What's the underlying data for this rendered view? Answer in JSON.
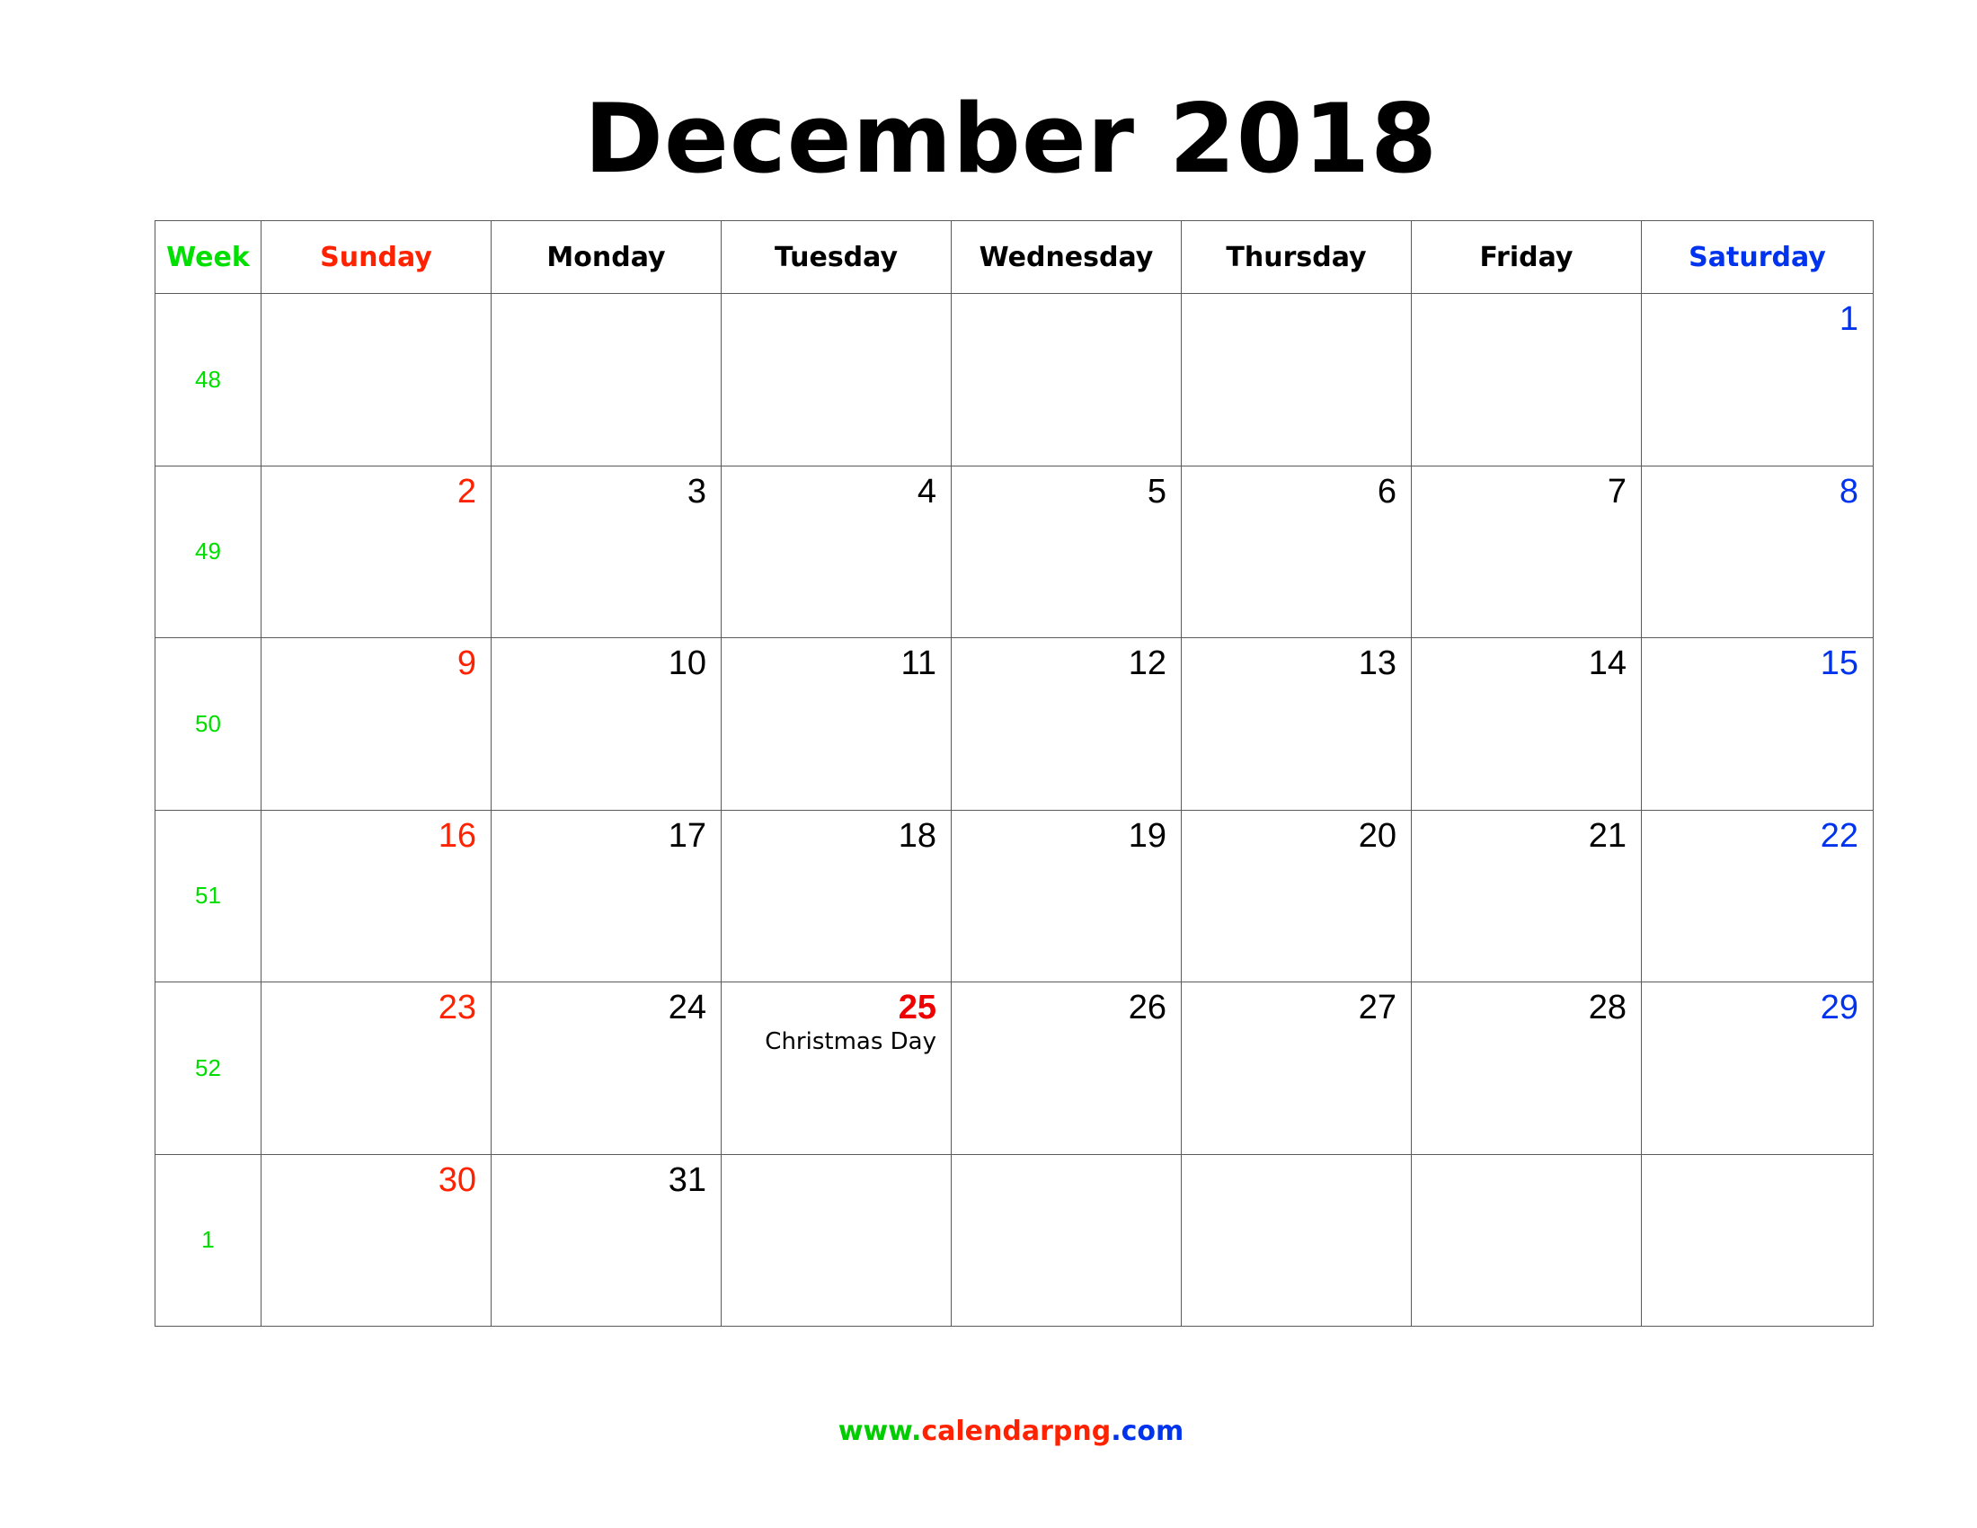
{
  "title": "December 2018",
  "header": {
    "week": "Week",
    "days": [
      "Sunday",
      "Monday",
      "Tuesday",
      "Wednesday",
      "Thursday",
      "Friday",
      "Saturday"
    ]
  },
  "colors": {
    "week": "#00dd00",
    "sunday": "#ff2200",
    "saturday": "#0033ee",
    "holiday": "#ee0000",
    "weekday": "#000000",
    "grid": "#5a5a5a"
  },
  "weeks": [
    {
      "week": "48",
      "days": [
        "",
        "",
        "",
        "",
        "",
        "",
        "1"
      ]
    },
    {
      "week": "49",
      "days": [
        "2",
        "3",
        "4",
        "5",
        "6",
        "7",
        "8"
      ]
    },
    {
      "week": "50",
      "days": [
        "9",
        "10",
        "11",
        "12",
        "13",
        "14",
        "15"
      ]
    },
    {
      "week": "51",
      "days": [
        "16",
        "17",
        "18",
        "19",
        "20",
        "21",
        "22"
      ]
    },
    {
      "week": "52",
      "days": [
        "23",
        "24",
        "25",
        "26",
        "27",
        "28",
        "29"
      ]
    },
    {
      "week": "1",
      "days": [
        "30",
        "31",
        "",
        "",
        "",
        "",
        ""
      ]
    }
  ],
  "holidays": [
    {
      "day": "25",
      "name": "Christmas Day"
    }
  ],
  "footer": {
    "part1": "www.",
    "part2": "calendarpng",
    "part3": ".com"
  }
}
